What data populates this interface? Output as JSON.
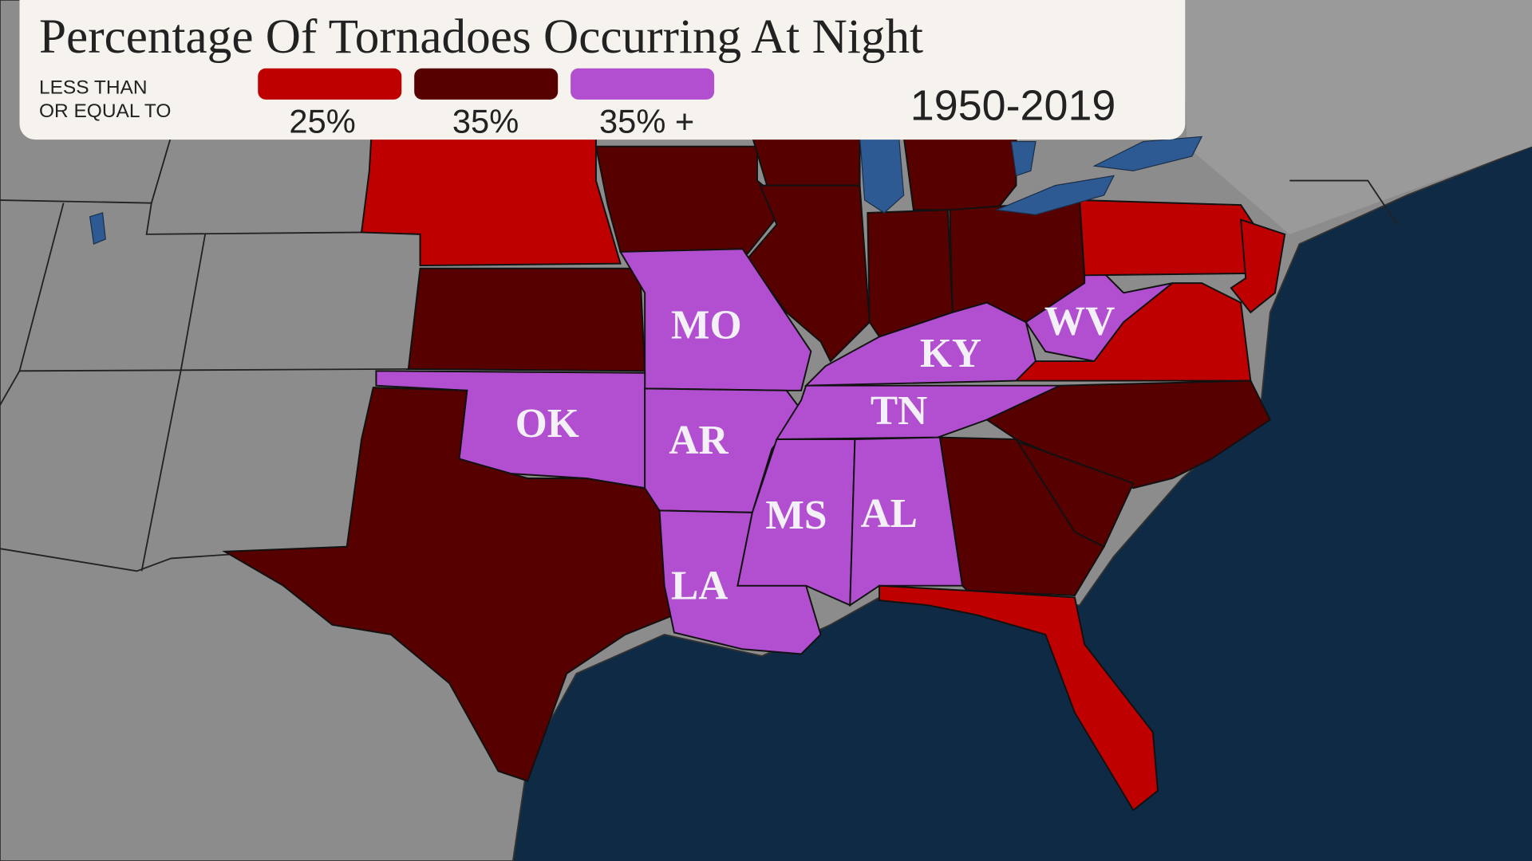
{
  "header": {
    "title": "Percentage Of Tornadoes Occurring At Night",
    "legend_note": [
      "LESS THAN",
      "OR EQUAL TO"
    ],
    "period": "1950-2019"
  },
  "legend": [
    {
      "label": "25%",
      "color": "#bf0000"
    },
    {
      "label": "35%",
      "color": "#560000"
    },
    {
      "label": "35% +",
      "color": "#b24fd1"
    }
  ],
  "state_labels": [
    "MO",
    "OK",
    "AR",
    "KY",
    "TN",
    "WV",
    "MS",
    "AL",
    "LA"
  ]
}
